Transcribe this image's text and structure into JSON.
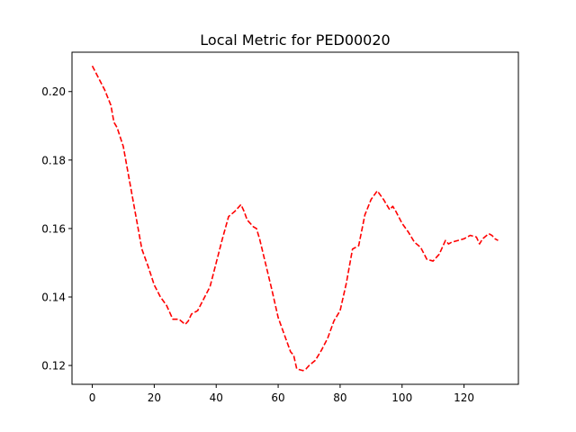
{
  "chart_data": {
    "type": "line",
    "title": "Local Metric for PED00020",
    "xlabel": "",
    "ylabel": "",
    "xlim": [
      -6.55,
      137.55
    ],
    "ylim": [
      0.1145,
      0.2115
    ],
    "xticks": [
      0,
      20,
      40,
      60,
      80,
      100,
      120
    ],
    "yticks": [
      0.12,
      0.14,
      0.16,
      0.18,
      0.2
    ],
    "xtick_labels": [
      "0",
      "20",
      "40",
      "60",
      "80",
      "100",
      "120"
    ],
    "ytick_labels": [
      "0.12",
      "0.14",
      "0.16",
      "0.18",
      "0.20"
    ],
    "grid": false,
    "legend": "none",
    "series": [
      {
        "color": "#ff0000",
        "line_style": "dashed",
        "x": [
          0,
          2,
          4,
          6,
          7,
          8,
          10,
          12,
          14,
          16,
          18,
          20,
          22,
          24,
          26,
          28,
          30,
          31,
          32,
          34,
          36,
          38,
          40,
          42,
          44,
          46,
          48,
          49,
          50,
          52,
          53,
          54,
          56,
          58,
          60,
          62,
          64,
          65,
          66,
          68,
          69,
          70,
          72,
          74,
          76,
          78,
          80,
          82,
          84,
          86,
          88,
          90,
          92,
          94,
          96,
          97,
          98,
          100,
          102,
          104,
          106,
          108,
          110,
          112,
          114,
          115,
          116,
          118,
          120,
          122,
          124,
          125,
          126,
          128,
          129,
          130,
          131
        ],
        "y": [
          0.2075,
          0.204,
          0.2005,
          0.196,
          0.191,
          0.1895,
          0.184,
          0.174,
          0.164,
          0.154,
          0.149,
          0.1435,
          0.14,
          0.1375,
          0.1335,
          0.1335,
          0.132,
          0.133,
          0.135,
          0.136,
          0.1395,
          0.143,
          0.15,
          0.157,
          0.1635,
          0.165,
          0.167,
          0.165,
          0.1625,
          0.1605,
          0.16,
          0.157,
          0.1495,
          0.142,
          0.134,
          0.129,
          0.124,
          0.123,
          0.119,
          0.1185,
          0.119,
          0.12,
          0.1215,
          0.1245,
          0.128,
          0.133,
          0.136,
          0.144,
          0.154,
          0.155,
          0.164,
          0.1685,
          0.171,
          0.1685,
          0.1655,
          0.1665,
          0.165,
          0.1615,
          0.159,
          0.156,
          0.1545,
          0.151,
          0.1505,
          0.1525,
          0.1565,
          0.1555,
          0.156,
          0.1565,
          0.157,
          0.158,
          0.1575,
          0.1555,
          0.157,
          0.1585,
          0.158,
          0.157,
          0.1565
        ]
      }
    ]
  }
}
